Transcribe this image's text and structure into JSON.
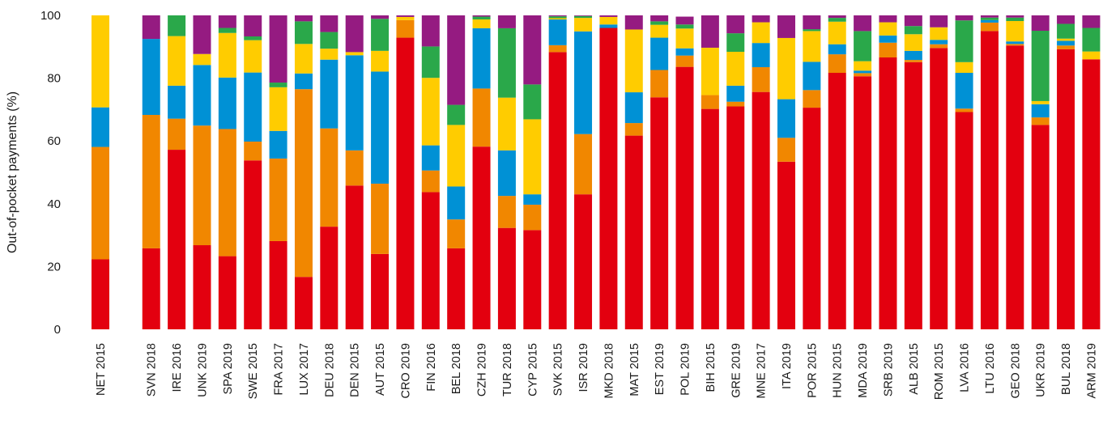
{
  "chart_data": {
    "type": "bar",
    "stacked": true,
    "ylabel": "Out-of-pocket payments (%)",
    "ylim": [
      0,
      100
    ],
    "yticks": [
      0,
      20,
      40,
      60,
      80,
      100
    ],
    "grid": false,
    "colors": [
      "#e3000f",
      "#f18700",
      "#0091d5",
      "#ffcc00",
      "#2aa84a",
      "#951b81"
    ],
    "categories": [
      "NET 2015",
      "",
      "SVN 2018",
      "IRE 2016",
      "UNK 2019",
      "SPA 2019",
      "SWE 2015",
      "FRA 2017",
      "LUX 2017",
      "DEU 2018",
      "DEN 2015",
      "AUT 2015",
      "CRO 2019",
      "FIN 2016",
      "BEL 2018",
      "CZH 2019",
      "TUR 2018",
      "CYP 2015",
      "SVK 2015",
      "ISR 2019",
      "MKD 2018",
      "MAT 2015",
      "EST 2019",
      "POL 2019",
      "BIH 2015",
      "GRE 2019",
      "MNE 2017",
      "ITA 2019",
      "POR 2015",
      "HUN 2015",
      "MDA 2019",
      "SRB 2019",
      "ALB 2015",
      "ROM 2015",
      "LVA 2016",
      "LTU 2016",
      "GEO 2018",
      "UKR 2019",
      "BUL 2018",
      "ARM 2019"
    ],
    "series": [
      {
        "values": [
          22.3,
          null,
          25.8,
          57.2,
          26.8,
          23.3,
          53.8,
          28.1,
          16.7,
          32.7,
          45.8,
          24.0,
          92.9,
          43.7,
          25.8,
          58.2,
          32.3,
          31.6,
          88.3,
          43.0,
          96.0,
          61.7,
          73.9,
          83.6,
          70.2,
          71.0,
          75.6,
          53.4,
          70.6,
          81.7,
          80.6,
          86.6,
          85.1,
          89.6,
          69.2,
          95.0,
          90.4,
          65.1,
          89.2,
          86.0
        ]
      },
      {
        "values": [
          35.8,
          null,
          42.5,
          9.9,
          38.1,
          40.5,
          6.0,
          26.3,
          59.8,
          31.3,
          11.2,
          22.4,
          5.6,
          6.9,
          9.2,
          18.5,
          10.2,
          8.1,
          2.2,
          19.2,
          0.0,
          4.0,
          8.7,
          3.6,
          4.4,
          1.5,
          7.9,
          7.6,
          5.6,
          5.9,
          1.0,
          4.7,
          0.7,
          1.2,
          1.1,
          2.7,
          0.5,
          2.4,
          1.2,
          0.0
        ]
      },
      {
        "values": [
          12.6,
          null,
          24.2,
          10.5,
          19.3,
          16.4,
          22.0,
          8.8,
          5.0,
          21.9,
          30.3,
          35.7,
          0.0,
          8.0,
          10.5,
          19.2,
          14.5,
          3.3,
          8.2,
          32.7,
          1.1,
          9.8,
          10.3,
          2.3,
          0.0,
          5.1,
          7.7,
          12.3,
          9.0,
          3.2,
          0.8,
          2.3,
          2.9,
          1.4,
          11.4,
          0.8,
          0.8,
          4.2,
          1.5,
          0.0
        ]
      },
      {
        "values": [
          29.3,
          null,
          0.0,
          15.8,
          3.5,
          14.2,
          10.3,
          13.9,
          9.4,
          3.5,
          1.0,
          6.6,
          1.0,
          21.5,
          19.6,
          2.8,
          16.8,
          23.9,
          0.4,
          4.3,
          2.4,
          20.0,
          4.1,
          6.3,
          15.1,
          10.8,
          6.6,
          19.5,
          9.8,
          7.2,
          3.0,
          4.2,
          5.3,
          4.0,
          3.4,
          0.0,
          6.5,
          1.0,
          0.7,
          2.5
        ]
      },
      {
        "values": [
          0.0,
          null,
          0.0,
          6.6,
          0.0,
          1.6,
          1.2,
          1.5,
          7.2,
          5.3,
          0.0,
          10.2,
          0.0,
          10.0,
          6.4,
          0.9,
          22.1,
          11.1,
          0.6,
          0.6,
          0.0,
          0.0,
          1.1,
          1.3,
          0.0,
          5.9,
          0.0,
          0.0,
          0.6,
          1.2,
          9.6,
          0.0,
          2.6,
          0.0,
          13.3,
          0.8,
          1.1,
          22.4,
          4.7,
          7.5
        ]
      },
      {
        "values": [
          0.0,
          null,
          7.5,
          0.0,
          12.3,
          4.0,
          6.7,
          21.4,
          1.9,
          5.3,
          11.7,
          1.1,
          0.5,
          9.9,
          28.5,
          0.4,
          4.1,
          22.0,
          0.3,
          0.2,
          0.5,
          4.5,
          1.9,
          2.5,
          10.3,
          5.7,
          2.2,
          7.2,
          4.4,
          0.8,
          5.0,
          2.2,
          3.4,
          3.8,
          1.6,
          0.7,
          0.7,
          4.9,
          2.7,
          4.0
        ]
      }
    ]
  }
}
